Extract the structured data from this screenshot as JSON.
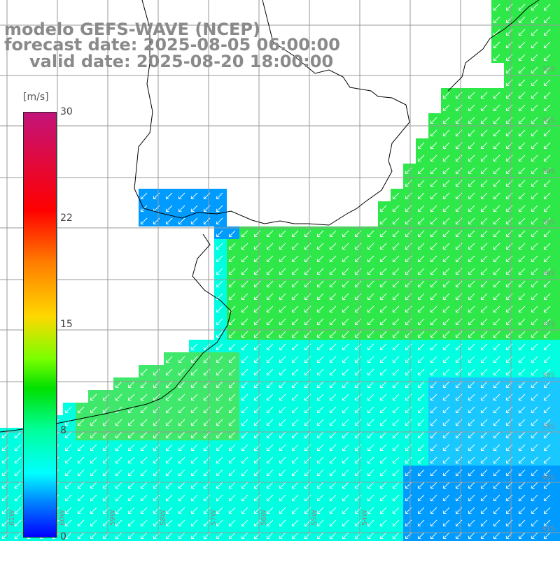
{
  "title": {
    "line1": "modelo GEFS-WAVE (NCEP)",
    "line2": "forecast date: 2025-08-05 06:00:00",
    "line3": "valid date: 2025-08-20 18:00:00"
  },
  "colorbar": {
    "unit": "[m/s]",
    "ticks": [
      "30",
      "22",
      "15",
      "8",
      "0"
    ],
    "min": 0,
    "max": 30,
    "colors": [
      "#0000ff",
      "#0080ff",
      "#00ffff",
      "#00ff9c",
      "#00e000",
      "#7aff00",
      "#ffd800",
      "#ff7a00",
      "#ff0000",
      "#c2137a"
    ]
  },
  "map": {
    "variable": "wind speed and direction",
    "lon_labels": [
      "61W",
      "60W",
      "59W",
      "58W",
      "57W",
      "56W",
      "55W",
      "54W"
    ],
    "lat_labels": [
      "32S",
      "33S",
      "34S",
      "35S",
      "36S",
      "37S",
      "38S",
      "39S",
      "40S",
      "41S"
    ],
    "colors": {
      "land": "#ffffff",
      "coast": "#000000",
      "grid": "#999999",
      "arrow": "#ffffff",
      "strong": "#2ee84a",
      "moderate": "#00ffe0",
      "weak": "#009bff"
    }
  }
}
